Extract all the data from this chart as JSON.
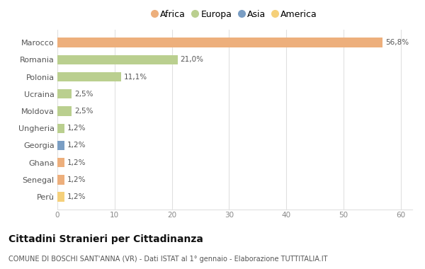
{
  "countries": [
    "Marocco",
    "Romania",
    "Polonia",
    "Ucraina",
    "Moldova",
    "Ungheria",
    "Georgia",
    "Ghana",
    "Senegal",
    "Perù"
  ],
  "values": [
    56.8,
    21.0,
    11.1,
    2.5,
    2.5,
    1.2,
    1.2,
    1.2,
    1.2,
    1.2
  ],
  "labels": [
    "56,8%",
    "21,0%",
    "11,1%",
    "2,5%",
    "2,5%",
    "1,2%",
    "1,2%",
    "1,2%",
    "1,2%",
    "1,2%"
  ],
  "colors": [
    "#EDAF7C",
    "#BACF8F",
    "#BACF8F",
    "#BACF8F",
    "#BACF8F",
    "#BACF8F",
    "#7A9EC4",
    "#EDAF7C",
    "#EDAF7C",
    "#F5D07A"
  ],
  "legend_labels": [
    "Africa",
    "Europa",
    "Asia",
    "America"
  ],
  "legend_colors": [
    "#EDAF7C",
    "#BACF8F",
    "#7A9EC4",
    "#F5D07A"
  ],
  "title": "Cittadini Stranieri per Cittadinanza",
  "subtitle": "COMUNE DI BOSCHI SANT'ANNA (VR) - Dati ISTAT al 1° gennaio - Elaborazione TUTTITALIA.IT",
  "xlim": [
    0,
    62
  ],
  "xticks": [
    0,
    10,
    20,
    30,
    40,
    50,
    60
  ],
  "background_color": "#ffffff",
  "grid_color": "#e0e0e0",
  "bar_height": 0.55
}
